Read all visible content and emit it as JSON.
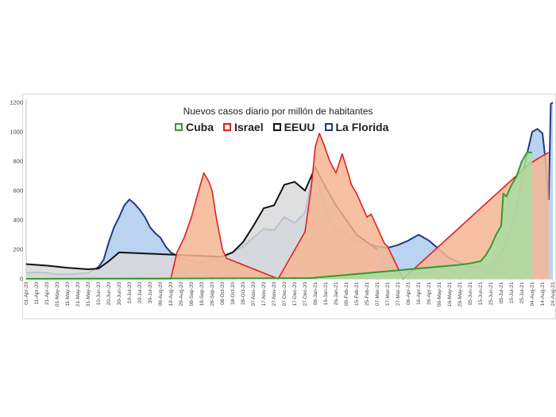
{
  "chart_data": {
    "type": "area",
    "title": "Nuevos casos diario por millón de habitantes",
    "xlabel": "",
    "ylabel": "",
    "ylim": [
      0,
      1200
    ],
    "yticks": [
      0,
      200,
      400,
      600,
      800,
      1000,
      1200
    ],
    "grid": false,
    "legend_position": "top-center",
    "x_ticks": [
      "01-Apr-20",
      "11-Apr-20",
      "21-Apr-20",
      "01-May-20",
      "11-May-20",
      "21-May-20",
      "31-May-20",
      "10-Jun-20",
      "20-Jun-20",
      "30-Jun-20",
      "10-Jul-20",
      "20-Jul-20",
      "30-Jul-20",
      "09-Aug-20",
      "19-Aug-20",
      "29-Aug-20",
      "08-Sep-20",
      "18-Sep-20",
      "28-Sep-20",
      "08-Oct-20",
      "18-Oct-20",
      "28-Oct-20",
      "07-Nov-20",
      "17-Nov-20",
      "27-Nov-20",
      "07-Dec-20",
      "17-Dec-20",
      "27-Dec-20",
      "06-Jan-21",
      "16-Jan-21",
      "26-Jan-21",
      "05-Feb-21",
      "15-Feb-21",
      "25-Feb-21",
      "07-Mar-21",
      "17-Mar-21",
      "27-Mar-21",
      "06-Apr-21",
      "16-Apr-21",
      "26-Apr-21",
      "06-May-21",
      "16-May-21",
      "26-May-21",
      "05-Jun-21",
      "15-Jun-21",
      "25-Jun-21",
      "05-Jul-21",
      "15-Jul-21",
      "25-Jul-21",
      "04-Aug-21",
      "14-Aug-21",
      "24-Aug-21"
    ],
    "series": [
      {
        "name": "Cuba",
        "color": "#2e9e2e",
        "fill": "#a9dca0",
        "points": [
          [
            "01-Apr-20",
            0
          ],
          [
            "01-Jan-21",
            5
          ],
          [
            "26-May-21",
            95
          ],
          [
            "05-Jun-21",
            105
          ],
          [
            "15-Jun-21",
            120
          ],
          [
            "20-Jun-21",
            160
          ],
          [
            "25-Jun-21",
            220
          ],
          [
            "30-Jun-21",
            300
          ],
          [
            "05-Jul-21",
            360
          ],
          [
            "07-Jul-21",
            580
          ],
          [
            "10-Jul-21",
            560
          ],
          [
            "15-Jul-21",
            640
          ],
          [
            "20-Jul-21",
            700
          ],
          [
            "25-Jul-21",
            800
          ],
          [
            "30-Jul-21",
            860
          ],
          [
            "04-Aug-21",
            860
          ]
        ]
      },
      {
        "name": "Israel",
        "color": "#e02020",
        "fill": "#f6b593",
        "points": [
          [
            "01-Apr-20",
            0
          ],
          [
            "19-Aug-20",
            0
          ],
          [
            "25-Aug-20",
            180
          ],
          [
            "01-Sep-20",
            280
          ],
          [
            "08-Sep-20",
            420
          ],
          [
            "15-Sep-20",
            600
          ],
          [
            "20-Sep-20",
            720
          ],
          [
            "25-Sep-20",
            660
          ],
          [
            "28-Sep-20",
            600
          ],
          [
            "02-Oct-20",
            420
          ],
          [
            "08-Oct-20",
            200
          ],
          [
            "12-Oct-20",
            140
          ],
          [
            "01-Dec-20",
            0
          ],
          [
            "27-Dec-20",
            320
          ],
          [
            "02-Jan-21",
            620
          ],
          [
            "06-Jan-21",
            900
          ],
          [
            "10-Jan-21",
            990
          ],
          [
            "14-Jan-21",
            920
          ],
          [
            "20-Jan-21",
            800
          ],
          [
            "26-Jan-21",
            720
          ],
          [
            "01-Feb-21",
            850
          ],
          [
            "05-Feb-21",
            760
          ],
          [
            "10-Feb-21",
            640
          ],
          [
            "15-Feb-21",
            580
          ],
          [
            "20-Feb-21",
            500
          ],
          [
            "25-Feb-21",
            420
          ],
          [
            "01-Mar-21",
            440
          ],
          [
            "05-Mar-21",
            380
          ],
          [
            "10-Mar-21",
            300
          ],
          [
            "14-Mar-21",
            240
          ],
          [
            "17-Mar-21",
            220
          ],
          [
            "01-Apr-21",
            0
          ],
          [
            "01-Aug-21",
            780
          ],
          [
            "10-Aug-21",
            820
          ],
          [
            "20-Aug-21",
            860
          ]
        ]
      },
      {
        "name": "EEUU",
        "color": "#111111",
        "fill": "#d9d9d9",
        "points": [
          [
            "01-Apr-20",
            100
          ],
          [
            "21-Apr-20",
            90
          ],
          [
            "11-May-20",
            75
          ],
          [
            "31-May-20",
            65
          ],
          [
            "10-Jun-20",
            70
          ],
          [
            "20-Jun-20",
            120
          ],
          [
            "30-Jun-20",
            180
          ],
          [
            "07-Oct-20",
            150
          ],
          [
            "18-Oct-20",
            180
          ],
          [
            "28-Oct-20",
            250
          ],
          [
            "07-Nov-20",
            360
          ],
          [
            "17-Nov-20",
            480
          ],
          [
            "27-Nov-20",
            500
          ],
          [
            "07-Dec-20",
            640
          ],
          [
            "17-Dec-20",
            660
          ],
          [
            "27-Dec-20",
            600
          ],
          [
            "06-Jan-21",
            760
          ],
          [
            "16-Jan-21",
            620
          ],
          [
            "26-Jan-21",
            500
          ],
          [
            "05-Feb-21",
            400
          ],
          [
            "15-Feb-21",
            300
          ],
          [
            "25-Feb-21",
            250
          ],
          [
            "07-Mar-21",
            200
          ]
        ]
      },
      {
        "name": "La Florida",
        "color": "#1f3a8a",
        "fill": "#aecbed",
        "points": [
          [
            "01-Apr-20",
            40
          ],
          [
            "11-Apr-20",
            45
          ],
          [
            "21-Apr-20",
            40
          ],
          [
            "01-May-20",
            30
          ],
          [
            "11-May-20",
            30
          ],
          [
            "21-May-20",
            35
          ],
          [
            "31-May-20",
            40
          ],
          [
            "10-Jun-20",
            80
          ],
          [
            "15-Jun-20",
            130
          ],
          [
            "20-Jun-20",
            250
          ],
          [
            "25-Jun-20",
            350
          ],
          [
            "30-Jun-20",
            420
          ],
          [
            "05-Jul-20",
            500
          ],
          [
            "10-Jul-20",
            540
          ],
          [
            "15-Jul-20",
            510
          ],
          [
            "20-Jul-20",
            470
          ],
          [
            "25-Jul-20",
            420
          ],
          [
            "30-Jul-20",
            350
          ],
          [
            "04-Aug-20",
            310
          ],
          [
            "09-Aug-20",
            280
          ],
          [
            "14-Aug-20",
            220
          ],
          [
            "19-Aug-20",
            180
          ],
          [
            "24-Aug-20",
            160
          ],
          [
            "29-Aug-20",
            140
          ],
          [
            "08-Sep-20",
            120
          ],
          [
            "18-Sep-20",
            110
          ],
          [
            "28-Sep-20",
            130
          ],
          [
            "08-Oct-20",
            150
          ],
          [
            "18-Oct-20",
            180
          ],
          [
            "28-Oct-20",
            220
          ],
          [
            "07-Nov-20",
            280
          ],
          [
            "17-Nov-20",
            340
          ],
          [
            "27-Nov-20",
            330
          ],
          [
            "07-Dec-20",
            420
          ],
          [
            "17-Dec-20",
            380
          ],
          [
            "27-Dec-20",
            450
          ],
          [
            "01-Jan-21",
            620
          ],
          [
            "06-Jan-21",
            740
          ],
          [
            "11-Jan-21",
            600
          ],
          [
            "16-Jan-21",
            450
          ],
          [
            "21-Jan-21",
            380
          ],
          [
            "26-Jan-21",
            340
          ],
          [
            "05-Feb-21",
            300
          ],
          [
            "15-Feb-21",
            260
          ],
          [
            "25-Feb-21",
            240
          ],
          [
            "07-Mar-21",
            220
          ],
          [
            "17-Mar-21",
            210
          ],
          [
            "27-Mar-21",
            230
          ],
          [
            "06-Apr-21",
            260
          ],
          [
            "16-Apr-21",
            300
          ],
          [
            "26-Apr-21",
            260
          ],
          [
            "06-May-21",
            200
          ],
          [
            "16-May-21",
            140
          ],
          [
            "26-May-21",
            110
          ],
          [
            "05-Jun-21",
            85
          ],
          [
            "15-Jun-21",
            75
          ],
          [
            "25-Jun-21",
            100
          ],
          [
            "05-Jul-21",
            180
          ],
          [
            "15-Jul-21",
            350
          ],
          [
            "20-Jul-21",
            500
          ],
          [
            "25-Jul-21",
            680
          ],
          [
            "30-Jul-21",
            850
          ],
          [
            "04-Aug-21",
            1000
          ],
          [
            "09-Aug-21",
            1020
          ],
          [
            "14-Aug-21",
            990
          ],
          [
            "17-Aug-21",
            800
          ],
          [
            "20-Aug-21",
            540
          ],
          [
            "22-Aug-21",
            1190
          ],
          [
            "24-Aug-21",
            1200
          ]
        ]
      }
    ]
  }
}
